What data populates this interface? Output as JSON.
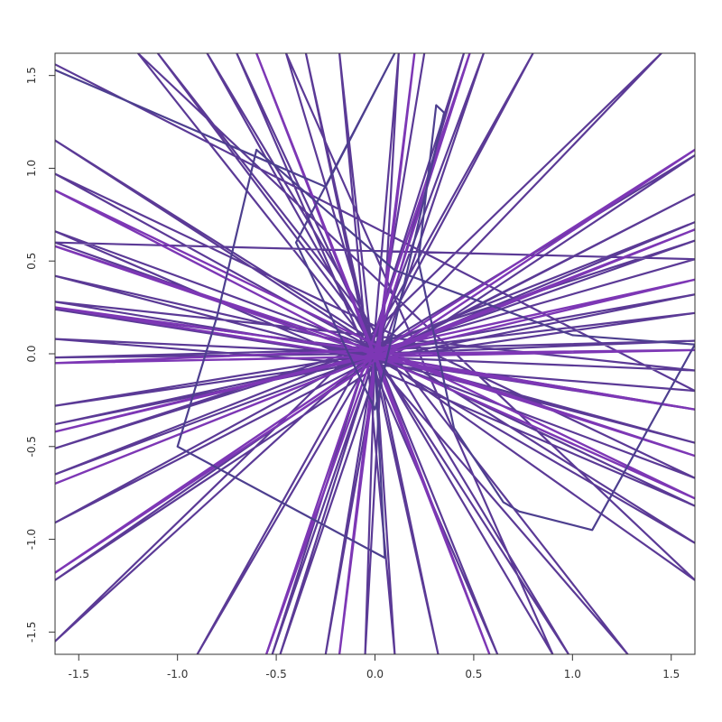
{
  "chart_data": {
    "type": "line",
    "title": "",
    "xlabel": "",
    "ylabel": "",
    "xlim": [
      -1.62,
      1.62
    ],
    "ylim": [
      -1.62,
      1.62
    ],
    "grid": false,
    "legend": "none",
    "x_ticks": [
      -1.5,
      -1.0,
      -0.5,
      0.0,
      0.5,
      1.0,
      1.5
    ],
    "x_tick_labels": [
      "-1.5",
      "-1.0",
      "-0.5",
      "0.0",
      "0.5",
      "1.0",
      "1.5"
    ],
    "y_ticks": [
      -1.5,
      -1.0,
      -0.5,
      0.0,
      0.5,
      1.0,
      1.5
    ],
    "y_tick_labels": [
      "-1.5",
      "-1.0",
      "-0.5",
      "0.0",
      "0.5",
      "1.0",
      "1.5"
    ],
    "series": [
      {
        "color": "#5b3a96",
        "points": [
          [
            -1.62,
            1.56
          ],
          [
            1.62,
            -0.2
          ],
          [
            -1.62,
            0.08
          ],
          [
            0.03,
            0.0
          ],
          [
            -1.62,
            -0.38
          ],
          [
            1.62,
            0.32
          ],
          [
            -0.02,
            0.01
          ],
          [
            1.62,
            1.07
          ],
          [
            -1.62,
            -1.22
          ],
          [
            0.01,
            -0.02
          ],
          [
            -0.45,
            1.62
          ],
          [
            0.9,
            -1.62
          ],
          [
            -0.01,
            0.02
          ],
          [
            -1.2,
            1.62
          ],
          [
            1.62,
            -1.22
          ],
          [
            0.0,
            0.0
          ],
          [
            0.25,
            1.62
          ],
          [
            -0.25,
            -1.62
          ],
          [
            0.02,
            0.01
          ],
          [
            -1.62,
            0.97
          ],
          [
            1.62,
            -0.67
          ],
          [
            -0.03,
            -0.01
          ],
          [
            1.62,
            0.61
          ],
          [
            -1.62,
            -0.51
          ],
          [
            0.0,
            0.03
          ],
          [
            0.8,
            1.62
          ],
          [
            -0.9,
            -1.62
          ],
          [
            -0.01,
            0.0
          ],
          [
            -1.62,
            0.28
          ],
          [
            1.62,
            -0.09
          ],
          [
            0.02,
            -0.02
          ],
          [
            -0.7,
            1.62
          ],
          [
            0.62,
            -1.62
          ],
          [
            0.0,
            0.01
          ],
          [
            1.45,
            1.62
          ],
          [
            -1.62,
            -1.55
          ],
          [
            -0.02,
            0.0
          ],
          [
            -1.62,
            0.6
          ],
          [
            1.62,
            0.51
          ],
          [
            0.01,
            0.02
          ],
          [
            0.45,
            1.62
          ],
          [
            -0.52,
            -1.62
          ],
          [
            0.0,
            -0.01
          ],
          [
            1.62,
            -0.48
          ],
          [
            -1.62,
            0.42
          ],
          [
            0.03,
            0.02
          ],
          [
            -1.1,
            1.62
          ],
          [
            1.28,
            -1.62
          ],
          [
            -0.01,
            -0.03
          ],
          [
            -0.18,
            1.62
          ],
          [
            0.1,
            -1.62
          ],
          [
            0.0,
            0.0
          ],
          [
            1.62,
            0.07
          ],
          [
            -1.62,
            -0.02
          ],
          [
            0.02,
            0.0
          ],
          [
            -1.62,
            -0.65
          ],
          [
            1.62,
            0.71
          ],
          [
            -0.02,
            -0.02
          ],
          [
            0.55,
            1.62
          ],
          [
            -0.48,
            -1.62
          ],
          [
            0.01,
            0.03
          ],
          [
            -1.62,
            1.15
          ],
          [
            1.62,
            -1.02
          ],
          [
            0.0,
            -0.02
          ],
          [
            1.62,
            0.86
          ],
          [
            -1.62,
            -0.91
          ],
          [
            -0.03,
            0.01
          ],
          [
            -0.35,
            1.62
          ],
          [
            0.32,
            -1.62
          ],
          [
            0.0,
            0.0
          ],
          [
            1.62,
            -0.82
          ],
          [
            -1.62,
            0.66
          ],
          [
            0.02,
            0.02
          ],
          [
            1.62,
            0.22
          ],
          [
            -1.62,
            -0.28
          ],
          [
            -0.01,
            0.0
          ],
          [
            0.12,
            1.62
          ],
          [
            -0.05,
            -1.62
          ],
          [
            0.0,
            0.02
          ],
          [
            -1.62,
            0.24
          ],
          [
            1.62,
            -0.3
          ],
          [
            0.01,
            -0.01
          ],
          [
            -0.85,
            1.62
          ],
          [
            0.98,
            -1.62
          ],
          [
            0.0,
            0.0
          ]
        ]
      },
      {
        "color": "#7d37b5",
        "points": [
          [
            0.0,
            0.0
          ],
          [
            1.62,
            1.1
          ],
          [
            -1.62,
            -1.18
          ],
          [
            0.02,
            0.0
          ],
          [
            1.62,
            0.02
          ],
          [
            -1.62,
            -0.05
          ],
          [
            0.0,
            0.02
          ],
          [
            0.48,
            1.62
          ],
          [
            -0.55,
            -1.62
          ],
          [
            -0.01,
            0.0
          ],
          [
            -1.62,
            0.88
          ],
          [
            1.62,
            -0.78
          ],
          [
            0.0,
            -0.01
          ],
          [
            1.62,
            -0.3
          ],
          [
            -1.62,
            0.25
          ],
          [
            0.02,
            0.01
          ],
          [
            0.2,
            1.62
          ],
          [
            -0.18,
            -1.62
          ],
          [
            0.0,
            0.0
          ],
          [
            -1.62,
            -0.42
          ],
          [
            1.62,
            0.4
          ],
          [
            -0.01,
            0.02
          ],
          [
            -0.6,
            1.62
          ],
          [
            0.58,
            -1.62
          ],
          [
            0.0,
            0.0
          ],
          [
            1.62,
            0.67
          ],
          [
            -1.62,
            -0.7
          ],
          [
            0.01,
            -0.01
          ],
          [
            -1.62,
            0.58
          ],
          [
            1.62,
            -0.55
          ],
          [
            0.0,
            0.0
          ]
        ]
      },
      {
        "color": "#4d3f8f",
        "points": [
          [
            -1.62,
            1.53
          ],
          [
            -0.25,
            0.9
          ],
          [
            0.1,
            1.62
          ],
          [
            -0.4,
            0.6
          ],
          [
            0.0,
            -0.3
          ],
          [
            0.35,
            1.3
          ],
          [
            0.31,
            1.34
          ],
          [
            0.22,
            0.5
          ],
          [
            0.4,
            -0.4
          ],
          [
            0.65,
            -0.8
          ],
          [
            0.73,
            -0.85
          ],
          [
            1.1,
            -0.95
          ],
          [
            1.62,
            0.05
          ],
          [
            1.0,
            0.1
          ],
          [
            0.1,
            0.45
          ],
          [
            -0.6,
            1.1
          ],
          [
            -0.8,
            0.2
          ],
          [
            -1.0,
            -0.5
          ],
          [
            -0.3,
            -0.9
          ],
          [
            0.05,
            -1.1
          ],
          [
            0.0,
            -0.05
          ]
        ]
      }
    ]
  }
}
